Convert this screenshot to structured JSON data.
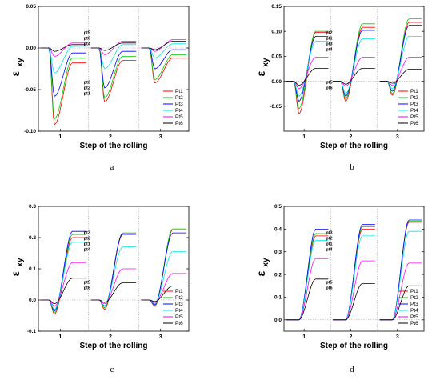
{
  "chart_data": [
    {
      "panel_caption": "a",
      "type": "line",
      "xlabel": "Step of the rolling",
      "ylabel": "ε",
      "ylabel_sub": "xy",
      "ylim": [
        -0.1,
        0.05
      ],
      "yticks": [
        -0.1,
        -0.05,
        0.0,
        0.05
      ],
      "ytick_labels": [
        "-0.10",
        "-0.05",
        "0.00",
        "0.05"
      ],
      "xlim": [
        0,
        1
      ],
      "x_tick_labels": [
        "1",
        "2",
        "3"
      ],
      "steps": 3,
      "legend_position": "bottom-right",
      "annotations_upper": [
        "pt5",
        "pt6",
        "pt4"
      ],
      "annotations_lower": [
        "pt3",
        "pt2",
        "pt1"
      ],
      "series": [
        {
          "name": "Pt1",
          "color": "#ff0000",
          "min": [
            -0.092,
            -0.065,
            -0.042
          ],
          "final": [
            -0.018,
            -0.015,
            -0.012
          ]
        },
        {
          "name": "Pt2",
          "color": "#00cc00",
          "min": [
            -0.085,
            -0.06,
            -0.038
          ],
          "final": [
            -0.012,
            -0.01,
            -0.008
          ]
        },
        {
          "name": "Pt3",
          "color": "#0000ff",
          "min": [
            -0.058,
            -0.048,
            -0.025
          ],
          "final": [
            -0.006,
            -0.004,
            -0.002
          ]
        },
        {
          "name": "Pt4",
          "color": "#00e5e5",
          "min": [
            -0.03,
            -0.025,
            -0.012
          ],
          "final": [
            0.002,
            0.004,
            0.005
          ]
        },
        {
          "name": "Pt5",
          "color": "#ff00ff",
          "min": [
            -0.01,
            -0.008,
            -0.004
          ],
          "final": [
            0.006,
            0.008,
            0.01
          ]
        },
        {
          "name": "Pt6",
          "color": "#000000",
          "min": [
            -0.004,
            -0.003,
            -0.002
          ],
          "final": [
            0.004,
            0.006,
            0.008
          ]
        }
      ]
    },
    {
      "panel_caption": "b",
      "type": "line",
      "xlabel": "Step of the rolling",
      "ylabel": "ε",
      "ylabel_sub": "xy",
      "ylim": [
        -0.1,
        0.15
      ],
      "yticks": [
        -0.05,
        0.0,
        0.05,
        0.1,
        0.15
      ],
      "ytick_labels": [
        "-0.05",
        "0.00",
        "0.05",
        "0.10",
        "0.15"
      ],
      "x_tick_labels": [
        "1",
        "2",
        "3"
      ],
      "steps": 3,
      "legend_position": "bottom-right",
      "annotations_upper": [
        "pt2",
        "pt1",
        "pt3",
        "pt4"
      ],
      "annotations_lower": [
        "pt5",
        "pt6"
      ],
      "series": [
        {
          "name": "Pt1",
          "color": "#ff0000",
          "min": [
            -0.065,
            -0.04,
            -0.028
          ],
          "final": [
            0.098,
            0.108,
            0.118
          ]
        },
        {
          "name": "Pt2",
          "color": "#00cc00",
          "min": [
            -0.055,
            -0.035,
            -0.025
          ],
          "final": [
            0.1,
            0.115,
            0.125
          ]
        },
        {
          "name": "Pt3",
          "color": "#0000ff",
          "min": [
            -0.04,
            -0.03,
            -0.02
          ],
          "final": [
            0.09,
            0.102,
            0.112
          ]
        },
        {
          "name": "Pt4",
          "color": "#00e5e5",
          "min": [
            -0.03,
            -0.025,
            -0.015
          ],
          "final": [
            0.08,
            0.085,
            0.09
          ]
        },
        {
          "name": "Pt5",
          "color": "#ff00ff",
          "min": [
            -0.015,
            -0.01,
            -0.008
          ],
          "final": [
            0.048,
            0.048,
            0.048
          ]
        },
        {
          "name": "Pt6",
          "color": "#000000",
          "min": [
            -0.008,
            -0.006,
            -0.004
          ],
          "final": [
            0.026,
            0.026,
            0.024
          ]
        }
      ]
    },
    {
      "panel_caption": "c",
      "type": "line",
      "xlabel": "Step of the rolling",
      "ylabel": "ε",
      "ylabel_sub": "xy",
      "ylim": [
        -0.1,
        0.3
      ],
      "yticks": [
        -0.1,
        0.0,
        0.1,
        0.2,
        0.3
      ],
      "ytick_labels": [
        "-0.1",
        "0.0",
        "0.1",
        "0.2",
        "0.3"
      ],
      "x_tick_labels": [
        "1",
        "2",
        "3"
      ],
      "steps": 3,
      "legend_position": "bottom-right",
      "annotations_upper": [
        "pt3",
        "pt2",
        "pt1",
        "pt4"
      ],
      "annotations_lower": [
        "pt5",
        "pt6"
      ],
      "series": [
        {
          "name": "Pt1",
          "color": "#ff0000",
          "min": [
            -0.045,
            -0.03,
            -0.02
          ],
          "final": [
            0.2,
            0.21,
            0.225
          ]
        },
        {
          "name": "Pt2",
          "color": "#00cc00",
          "min": [
            -0.04,
            -0.025,
            -0.018
          ],
          "final": [
            0.21,
            0.215,
            0.228
          ]
        },
        {
          "name": "Pt3",
          "color": "#0000ff",
          "min": [
            -0.035,
            -0.02,
            -0.015
          ],
          "final": [
            0.22,
            0.212,
            0.215
          ]
        },
        {
          "name": "Pt4",
          "color": "#00e5e5",
          "min": [
            -0.03,
            -0.018,
            -0.012
          ],
          "final": [
            0.185,
            0.17,
            0.155
          ]
        },
        {
          "name": "Pt5",
          "color": "#ff00ff",
          "min": [
            -0.02,
            -0.012,
            -0.008
          ],
          "final": [
            0.12,
            0.1,
            0.085
          ]
        },
        {
          "name": "Pt6",
          "color": "#000000",
          "min": [
            -0.012,
            -0.008,
            -0.005
          ],
          "final": [
            0.07,
            0.055,
            0.045
          ]
        }
      ]
    },
    {
      "panel_caption": "d",
      "type": "line",
      "xlabel": "Step of the rolling",
      "ylabel": "ε",
      "ylabel_sub": "xy",
      "ylim": [
        -0.05,
        0.5
      ],
      "yticks": [
        0.0,
        0.1,
        0.2,
        0.3,
        0.4,
        0.5
      ],
      "ytick_labels": [
        "0.0",
        "0.1",
        "0.2",
        "0.3",
        "0.4",
        "0.5"
      ],
      "x_tick_labels": [
        "1",
        "2",
        "3"
      ],
      "steps": 3,
      "legend_position": "bottom-right",
      "annotations_upper": [
        "pt3",
        "pt2",
        "pt1",
        "pt4"
      ],
      "annotations_lower": [
        "pt5",
        "pt6"
      ],
      "series": [
        {
          "name": "Pt1",
          "color": "#ff0000",
          "min": [
            0,
            0,
            0
          ],
          "final": [
            0.37,
            0.4,
            0.43
          ]
        },
        {
          "name": "Pt2",
          "color": "#00cc00",
          "min": [
            0,
            0,
            0
          ],
          "final": [
            0.38,
            0.41,
            0.435
          ]
        },
        {
          "name": "Pt3",
          "color": "#0000ff",
          "min": [
            0,
            0,
            0
          ],
          "final": [
            0.4,
            0.42,
            0.44
          ]
        },
        {
          "name": "Pt4",
          "color": "#00e5e5",
          "min": [
            0,
            0,
            0
          ],
          "final": [
            0.35,
            0.37,
            0.39
          ]
        },
        {
          "name": "Pt5",
          "color": "#ff00ff",
          "min": [
            0,
            0,
            0
          ],
          "final": [
            0.27,
            0.26,
            0.25
          ]
        },
        {
          "name": "Pt6",
          "color": "#000000",
          "min": [
            0,
            0,
            0
          ],
          "final": [
            0.18,
            0.16,
            0.15
          ]
        }
      ]
    }
  ]
}
